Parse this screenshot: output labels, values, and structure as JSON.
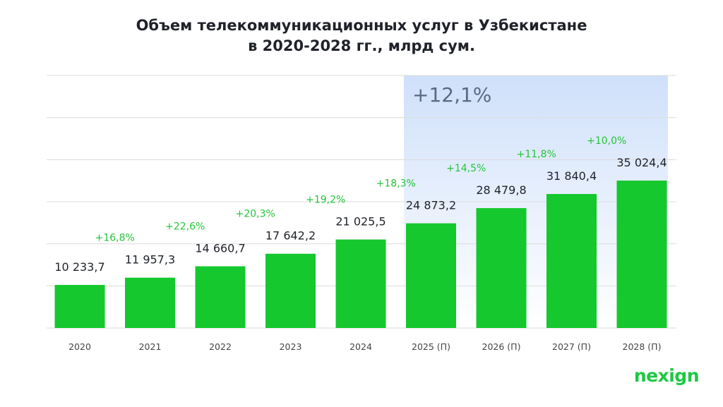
{
  "chart_data": {
    "type": "bar",
    "title": "Объем телекоммуникационных услуг в Узбекистане",
    "subtitle": "в 2020-2028 гг., млрд сум.",
    "categories": [
      "2020",
      "2021",
      "2022",
      "2023",
      "2024",
      "2025 (П)",
      "2026 (П)",
      "2027 (П)",
      "2028 (П)"
    ],
    "values": [
      10233.7,
      11957.3,
      14660.7,
      17642.2,
      21025.5,
      24873.2,
      28479.8,
      31840.4,
      35024.4
    ],
    "value_labels": [
      "10 233,7",
      "11 957,3",
      "14 660,7",
      "17 642,2",
      "21 025,5",
      "24 873,2",
      "28 479,8",
      "31 840,4",
      "35 024,4"
    ],
    "growth_labels": [
      "+16,8%",
      "+22,6%",
      "+20,3%",
      "+19,2%",
      "+18,3%",
      "+14,5%",
      "+11,8%",
      "+10,0%"
    ],
    "forecast_cagr_label": "+12,1%",
    "forecast_start_index": 5,
    "ylim": [
      0,
      60000
    ],
    "gridlines": 6,
    "xlabel": "",
    "ylabel": "",
    "colors": {
      "bar": "#14c82e",
      "growth": "#27c43a",
      "value": "#1f2229",
      "grid": "#dcdcdc",
      "tick": "#444444",
      "forecast_band_top": "#cfe0fa",
      "forecast_band_bottom": "#ffffff",
      "cagr": "#5a6a80"
    }
  },
  "brand": {
    "logo_text": "nexign"
  }
}
